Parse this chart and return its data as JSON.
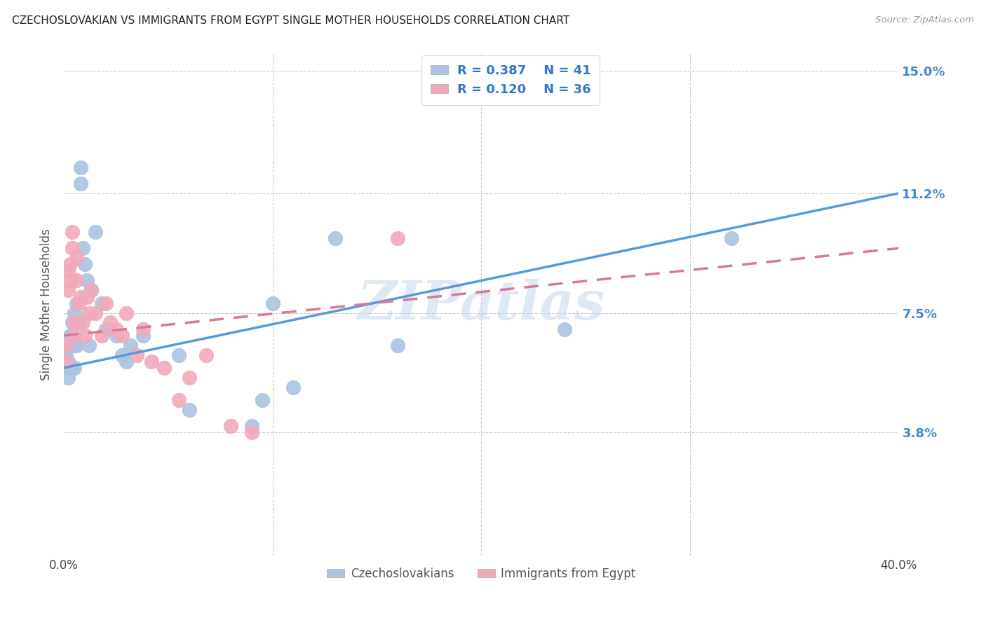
{
  "title": "CZECHOSLOVAKIAN VS IMMIGRANTS FROM EGYPT SINGLE MOTHER HOUSEHOLDS CORRELATION CHART",
  "source": "Source: ZipAtlas.com",
  "ylabel": "Single Mother Households",
  "ytick_vals": [
    0.0,
    0.038,
    0.075,
    0.112,
    0.15
  ],
  "ytick_labels": [
    "",
    "3.8%",
    "7.5%",
    "11.2%",
    "15.0%"
  ],
  "blue_R": 0.387,
  "blue_N": 41,
  "pink_R": 0.12,
  "pink_N": 36,
  "blue_color": "#aac4e2",
  "pink_color": "#f2aaba",
  "blue_line_color": "#5599dd",
  "pink_line_color": "#dd7799",
  "watermark": "ZIPatlas",
  "xlim": [
    0.0,
    0.4
  ],
  "ylim": [
    0.0,
    0.155
  ],
  "blue_x": [
    0.001,
    0.001,
    0.002,
    0.002,
    0.002,
    0.003,
    0.003,
    0.003,
    0.004,
    0.004,
    0.005,
    0.005,
    0.005,
    0.006,
    0.006,
    0.007,
    0.008,
    0.008,
    0.009,
    0.01,
    0.011,
    0.012,
    0.013,
    0.015,
    0.018,
    0.02,
    0.025,
    0.028,
    0.03,
    0.032,
    0.038,
    0.055,
    0.06,
    0.09,
    0.095,
    0.1,
    0.11,
    0.13,
    0.16,
    0.24,
    0.32
  ],
  "blue_y": [
    0.062,
    0.058,
    0.065,
    0.06,
    0.055,
    0.068,
    0.065,
    0.058,
    0.072,
    0.068,
    0.075,
    0.065,
    0.058,
    0.078,
    0.065,
    0.072,
    0.12,
    0.115,
    0.095,
    0.09,
    0.085,
    0.065,
    0.082,
    0.1,
    0.078,
    0.07,
    0.068,
    0.062,
    0.06,
    0.065,
    0.068,
    0.062,
    0.045,
    0.04,
    0.048,
    0.078,
    0.052,
    0.098,
    0.065,
    0.07,
    0.098
  ],
  "pink_x": [
    0.001,
    0.001,
    0.002,
    0.002,
    0.003,
    0.003,
    0.004,
    0.004,
    0.005,
    0.005,
    0.006,
    0.006,
    0.007,
    0.008,
    0.009,
    0.01,
    0.011,
    0.012,
    0.013,
    0.015,
    0.018,
    0.02,
    0.022,
    0.025,
    0.028,
    0.03,
    0.035,
    0.038,
    0.042,
    0.048,
    0.055,
    0.06,
    0.068,
    0.08,
    0.09,
    0.16
  ],
  "pink_y": [
    0.065,
    0.06,
    0.088,
    0.082,
    0.09,
    0.085,
    0.1,
    0.095,
    0.072,
    0.068,
    0.092,
    0.085,
    0.078,
    0.08,
    0.072,
    0.068,
    0.08,
    0.075,
    0.082,
    0.075,
    0.068,
    0.078,
    0.072,
    0.07,
    0.068,
    0.075,
    0.062,
    0.07,
    0.06,
    0.058,
    0.048,
    0.055,
    0.062,
    0.04,
    0.038,
    0.098
  ],
  "blue_line_x": [
    0.0,
    0.4
  ],
  "blue_line_y": [
    0.058,
    0.112
  ],
  "pink_line_x": [
    0.0,
    0.4
  ],
  "pink_line_y": [
    0.068,
    0.095
  ]
}
